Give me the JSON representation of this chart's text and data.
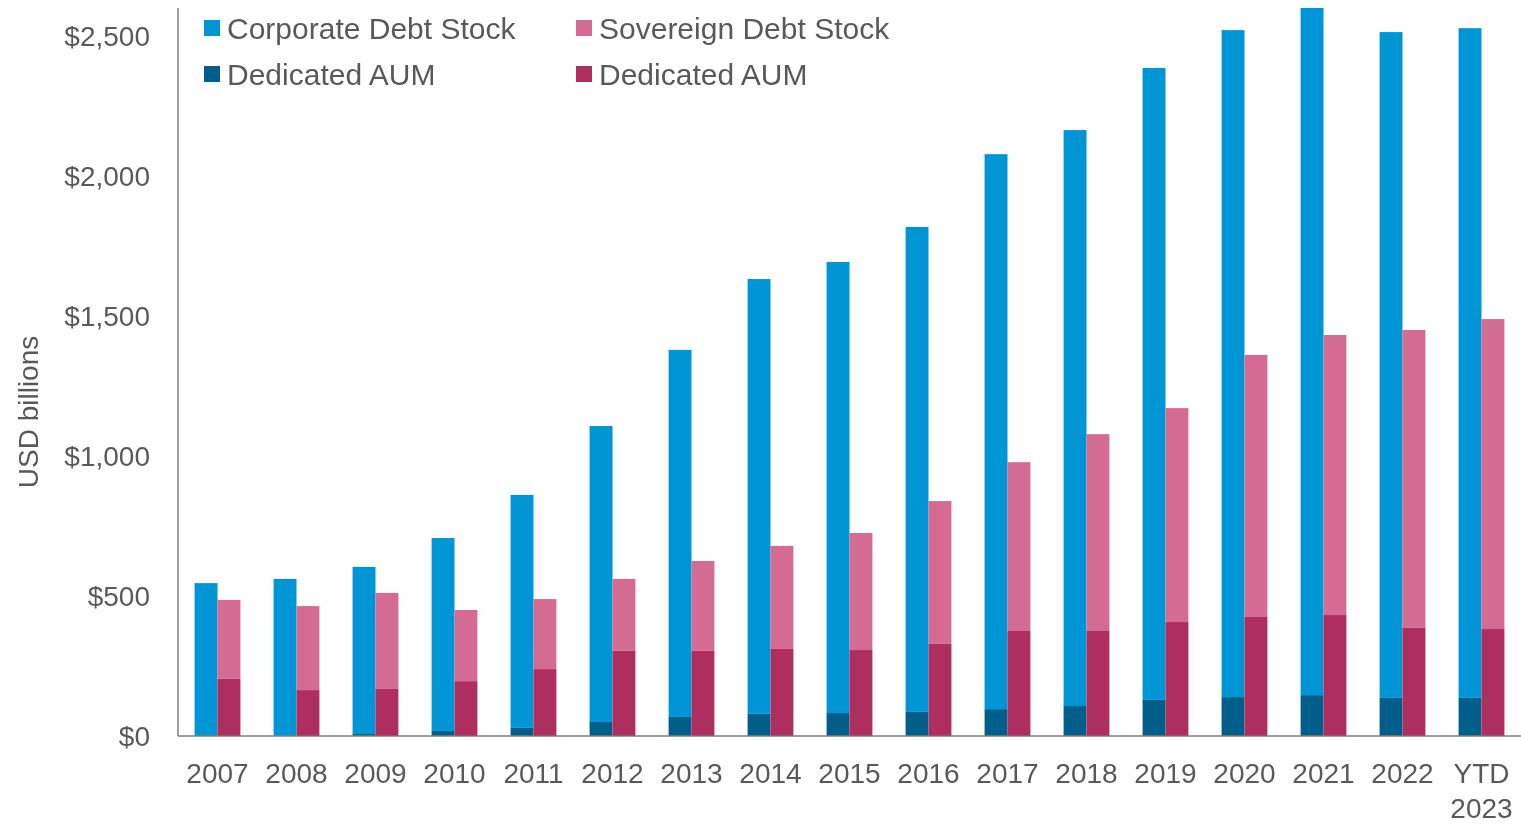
{
  "chart_data": [
    {
      "type": "bar",
      "stacked": true,
      "ylabel": "USD billions",
      "categories": [
        "2007",
        "2008",
        "2009",
        "2010",
        "2011",
        "2012",
        "2013",
        "2014",
        "2015",
        "2016",
        "2017",
        "2018",
        "2019",
        "2020",
        "2021",
        "2022",
        "YTD 2023"
      ],
      "series": [
        {
          "name": "Dedicated AUM",
          "color": "#005f8a",
          "values": [
            0,
            0,
            7,
            18,
            29,
            50,
            68,
            79,
            82,
            86,
            96,
            107,
            129,
            139,
            146,
            136,
            136
          ]
        },
        {
          "name": "Corporate Debt Stock",
          "color": "#0096d6",
          "values": [
            546,
            561,
            597,
            689,
            832,
            1057,
            1311,
            1553,
            1611,
            1732,
            1982,
            2057,
            2257,
            2382,
            2454,
            2378,
            2392
          ]
        }
      ],
      "ylim": [
        0,
        2600
      ],
      "yticks": [
        {
          "value": 0,
          "label": "$0"
        },
        {
          "value": 500,
          "label": "$500"
        },
        {
          "value": 1000,
          "label": "$1,000"
        },
        {
          "value": 1500,
          "label": "$1,500"
        },
        {
          "value": 2000,
          "label": "$2,000"
        },
        {
          "value": 2500,
          "label": "$2,500"
        }
      ],
      "legend": "top left"
    },
    {
      "type": "bar",
      "stacked": true,
      "categories": [
        null,
        null,
        null,
        null,
        null,
        null,
        null,
        null,
        null,
        null,
        null,
        null,
        null,
        null,
        null,
        null,
        null
      ],
      "series": [
        {
          "name": "Dedicated AUM",
          "color": "#ae2f5f",
          "values": [
            204,
            164,
            168,
            196,
            239,
            304,
            304,
            311,
            307,
            329,
            375,
            375,
            407,
            425,
            432,
            386,
            382
          ]
        },
        {
          "name": "Sovereign Debt Stock",
          "color": "#d36b93",
          "values": [
            282,
            300,
            343,
            254,
            250,
            257,
            321,
            368,
            418,
            510,
            603,
            703,
            764,
            936,
            1000,
            1064,
            1107
          ]
        }
      ],
      "ylim": [
        0,
        2600
      ],
      "legend": "top left"
    }
  ]
}
